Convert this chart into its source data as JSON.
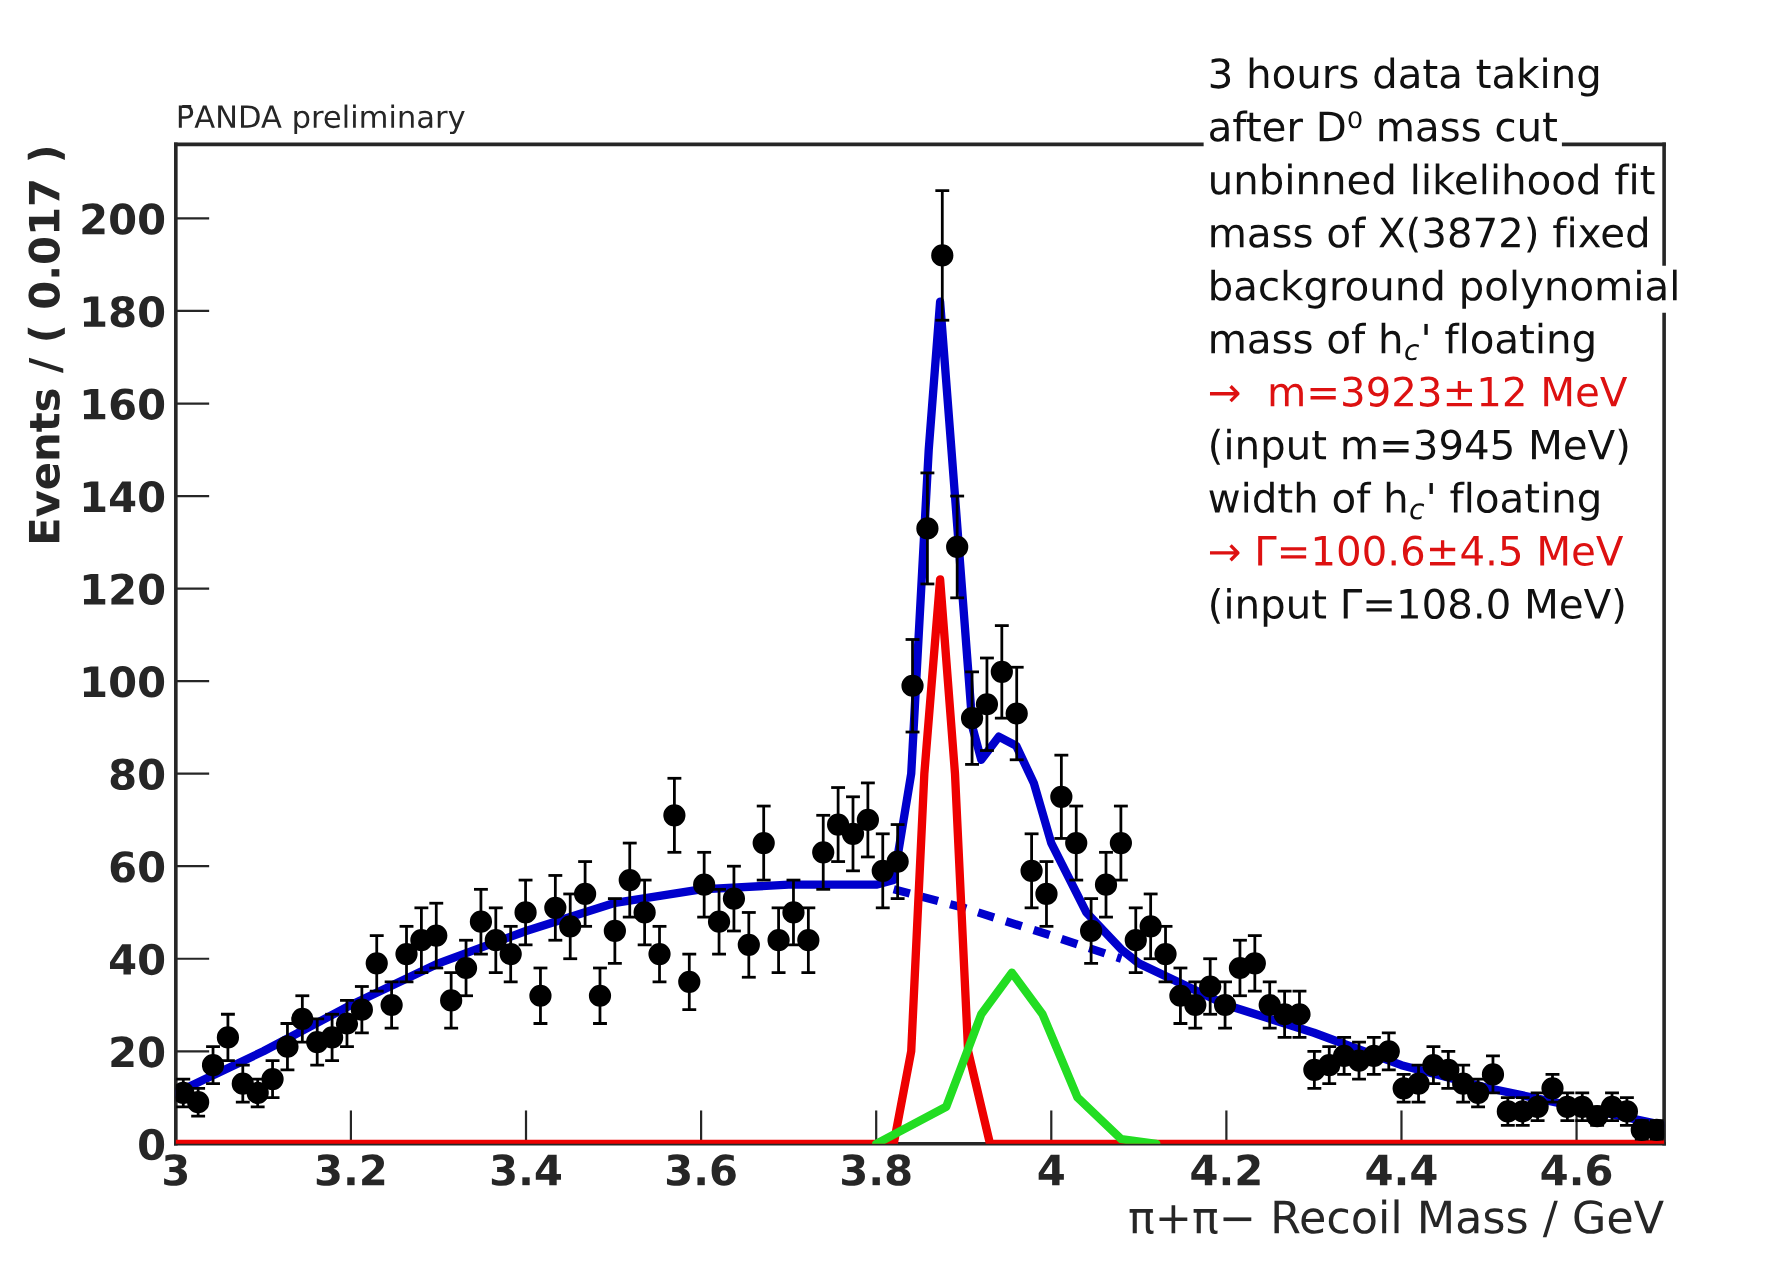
{
  "chart_data": {
    "type": "scatter",
    "title": "P̄ANDA preliminary",
    "xlabel": "π+π− Recoil Mass / GeV",
    "ylabel": "Events / ( 0.017 )",
    "xlim": [
      3,
      4.7
    ],
    "ylim": [
      0,
      216
    ],
    "xticks": [
      3,
      3.2,
      3.4,
      3.6,
      3.8,
      4,
      4.2,
      4.4,
      4.6
    ],
    "yticks": [
      0,
      20,
      40,
      60,
      80,
      100,
      120,
      140,
      160,
      180,
      200
    ],
    "grid": false,
    "legend": false,
    "series": [
      {
        "marker": "circle",
        "color": "#000000",
        "x": [
          3.0085,
          3.0255,
          3.0425,
          3.0595,
          3.0765,
          3.0935,
          3.1105,
          3.1275,
          3.1445,
          3.1615,
          3.1785,
          3.1955,
          3.2125,
          3.2295,
          3.2465,
          3.2635,
          3.2805,
          3.2975,
          3.3145,
          3.3315,
          3.3485,
          3.3655,
          3.3825,
          3.3995,
          3.4165,
          3.4335,
          3.4505,
          3.4675,
          3.4845,
          3.5015,
          3.5185,
          3.5355,
          3.5525,
          3.5695,
          3.5865,
          3.6035,
          3.6205,
          3.6375,
          3.6545,
          3.6715,
          3.6885,
          3.7055,
          3.7225,
          3.7395,
          3.7565,
          3.7735,
          3.7905,
          3.8075,
          3.8245,
          3.8415,
          3.8585,
          3.8755,
          3.8925,
          3.9095,
          3.9265,
          3.9435,
          3.9605,
          3.9775,
          3.9945,
          4.0115,
          4.0285,
          4.0455,
          4.0625,
          4.0795,
          4.0965,
          4.1135,
          4.1305,
          4.1475,
          4.1645,
          4.1815,
          4.1985,
          4.2155,
          4.2325,
          4.2495,
          4.2665,
          4.2835,
          4.3005,
          4.3175,
          4.3345,
          4.3515,
          4.3685,
          4.3855,
          4.4025,
          4.4195,
          4.4365,
          4.4535,
          4.4705,
          4.4875,
          4.5045,
          4.5215,
          4.5385,
          4.5555,
          4.5725,
          4.5895,
          4.6065,
          4.6235,
          4.6405,
          4.6575,
          4.6745,
          4.6915
        ],
        "values": [
          11,
          9,
          17,
          23,
          13,
          11,
          14,
          21,
          27,
          22,
          23,
          26,
          29,
          39,
          30,
          41,
          44,
          45,
          31,
          38,
          48,
          44,
          41,
          50,
          32,
          51,
          47,
          54,
          32,
          46,
          57,
          50,
          41,
          71,
          35,
          56,
          48,
          53,
          43,
          65,
          44,
          50,
          44,
          63,
          69,
          67,
          70,
          59,
          61,
          99,
          133,
          192,
          129,
          92,
          95,
          102,
          93,
          59,
          54,
          75,
          65,
          46,
          56,
          65,
          44,
          47,
          41,
          32,
          30,
          34,
          30,
          38,
          39,
          30,
          28,
          28,
          16,
          17,
          19,
          18,
          19,
          20,
          12,
          13,
          17,
          16,
          13,
          11,
          15,
          7,
          7,
          8,
          12,
          8,
          8,
          6,
          8,
          7,
          3,
          3
        ],
        "errors": [
          3,
          3,
          4,
          5,
          4,
          3,
          4,
          5,
          5,
          5,
          5,
          5,
          5,
          6,
          5,
          6,
          7,
          7,
          6,
          6,
          7,
          7,
          6,
          7,
          6,
          7,
          7,
          7,
          6,
          7,
          8,
          7,
          6,
          8,
          6,
          7,
          7,
          7,
          7,
          8,
          7,
          7,
          7,
          8,
          8,
          8,
          8,
          8,
          8,
          10,
          12,
          14,
          11,
          10,
          10,
          10,
          10,
          8,
          7,
          9,
          8,
          7,
          7,
          8,
          7,
          7,
          6,
          6,
          5,
          6,
          5,
          6,
          6,
          5,
          5,
          5,
          4,
          4,
          4,
          4,
          4,
          4,
          3,
          4,
          4,
          4,
          4,
          3,
          4,
          3,
          3,
          3,
          3,
          3,
          3,
          2,
          3,
          3,
          2,
          2
        ]
      },
      {
        "type": "line",
        "color": "#0000cc",
        "line_style": "solid",
        "x": [
          3.0,
          3.1,
          3.2,
          3.3,
          3.4,
          3.5,
          3.6,
          3.7,
          3.8,
          3.82,
          3.84,
          3.86,
          3.873,
          3.89,
          3.91,
          3.92,
          3.94,
          3.96,
          3.98,
          4.0,
          4.04,
          4.08,
          4.1,
          4.2,
          4.3,
          4.4,
          4.5,
          4.6,
          4.7
        ],
        "values": [
          11,
          20,
          30,
          39,
          46,
          52,
          55,
          56,
          56,
          57,
          80,
          150,
          182,
          140,
          90,
          83,
          88,
          86,
          78,
          65,
          50,
          42,
          39,
          30,
          24,
          17,
          12,
          8,
          4
        ]
      },
      {
        "type": "line",
        "color": "#0000cc",
        "line_style": "dashed",
        "x": [
          3.82,
          3.9,
          4.0,
          4.08
        ],
        "values": [
          55,
          51,
          45,
          40
        ]
      },
      {
        "type": "line",
        "color": "#ee0000",
        "line_style": "solid",
        "x": [
          3.0,
          3.82,
          3.84,
          3.855,
          3.873,
          3.89,
          3.905,
          3.93,
          4.7
        ],
        "values": [
          0,
          0,
          20,
          80,
          122,
          80,
          20,
          0,
          0
        ]
      },
      {
        "type": "line",
        "color": "#22dd22",
        "line_style": "solid",
        "x": [
          3.8,
          3.88,
          3.92,
          3.955,
          3.99,
          4.03,
          4.08,
          4.12
        ],
        "values": [
          0,
          8,
          28,
          37,
          28,
          10,
          1,
          0
        ]
      }
    ],
    "annotations": [
      "3 hours data taking",
      "after D⁰ mass cut",
      "unbinned likelihood fit",
      "mass of X(3872) fixed",
      "background polynomial",
      "mass of h$_{c}$' floating",
      "→  m=3923±12 MeV",
      "(input m=3945 MeV)",
      "width of h$_{c}$' floating",
      "→ Γ=100.6±4.5 MeV",
      "(input Γ=108.0 MeV)"
    ]
  }
}
